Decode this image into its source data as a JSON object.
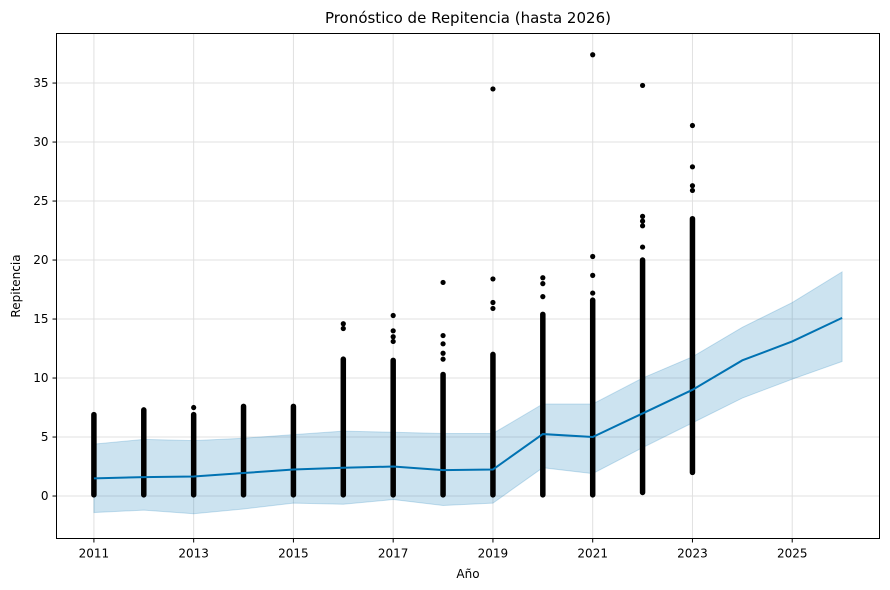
{
  "chart_data": {
    "type": "line",
    "title": "Pronóstico de Repitencia (hasta 2026)",
    "xlabel": "Año",
    "ylabel": "Repitencia",
    "xlim": [
      2010.25,
      2026.75
    ],
    "ylim": [
      -3.6,
      39.2
    ],
    "x_ticks": [
      "2011",
      "2013",
      "2015",
      "2017",
      "2019",
      "2021",
      "2023",
      "2025"
    ],
    "y_ticks": [
      "0",
      "5",
      "10",
      "15",
      "20",
      "25",
      "30",
      "35"
    ],
    "grid": true,
    "colors": {
      "forecast_line": "#0072b2",
      "interval_fill": "#0072b2",
      "observed_points": "#000000"
    },
    "forecast": {
      "x": [
        2011,
        2012,
        2013,
        2014,
        2015,
        2016,
        2017,
        2018,
        2019,
        2020,
        2021,
        2022,
        2023,
        2024,
        2025,
        2026
      ],
      "yhat": [
        1.5,
        1.6,
        1.65,
        1.95,
        2.25,
        2.4,
        2.5,
        2.2,
        2.25,
        5.25,
        5.0,
        7.0,
        9.0,
        11.5,
        13.1,
        15.1
      ],
      "yhat_lower": [
        -1.4,
        -1.2,
        -1.5,
        -1.1,
        -0.6,
        -0.7,
        -0.3,
        -0.8,
        -0.6,
        2.4,
        1.9,
        4.1,
        6.2,
        8.3,
        9.9,
        11.4
      ],
      "yhat_upper": [
        4.4,
        4.8,
        4.7,
        4.9,
        5.2,
        5.5,
        5.4,
        5.3,
        5.3,
        7.8,
        7.8,
        10.0,
        11.8,
        14.3,
        16.4,
        19.0
      ]
    },
    "observed": [
      {
        "x": 2011,
        "min": 0.1,
        "max": 6.9,
        "outliers": []
      },
      {
        "x": 2012,
        "min": 0.1,
        "max": 7.3,
        "outliers": []
      },
      {
        "x": 2013,
        "min": 0.1,
        "max": 6.9,
        "outliers": [
          7.5
        ]
      },
      {
        "x": 2014,
        "min": 0.1,
        "max": 7.6,
        "outliers": []
      },
      {
        "x": 2015,
        "min": 0.1,
        "max": 7.6,
        "outliers": []
      },
      {
        "x": 2016,
        "min": 0.1,
        "max": 11.6,
        "outliers": [
          14.2,
          14.6
        ]
      },
      {
        "x": 2017,
        "min": 0.1,
        "max": 11.5,
        "outliers": [
          13.1,
          13.5,
          14.0,
          15.3
        ]
      },
      {
        "x": 2018,
        "min": 0.1,
        "max": 10.3,
        "outliers": [
          11.6,
          12.1,
          12.9,
          13.6,
          18.1
        ]
      },
      {
        "x": 2019,
        "min": 0.1,
        "max": 12.0,
        "outliers": [
          15.9,
          16.4,
          18.4,
          34.5
        ]
      },
      {
        "x": 2020,
        "min": 0.1,
        "max": 15.4,
        "outliers": [
          16.9,
          18.0,
          18.5
        ]
      },
      {
        "x": 2021,
        "min": 0.1,
        "max": 16.6,
        "outliers": [
          17.2,
          18.7,
          20.3,
          37.4
        ]
      },
      {
        "x": 2022,
        "min": 0.3,
        "max": 20.0,
        "outliers": [
          21.1,
          22.9,
          23.3,
          23.7,
          34.8
        ]
      },
      {
        "x": 2023,
        "min": 2.0,
        "max": 23.5,
        "outliers": [
          25.9,
          26.3,
          27.9,
          31.4
        ]
      }
    ]
  }
}
